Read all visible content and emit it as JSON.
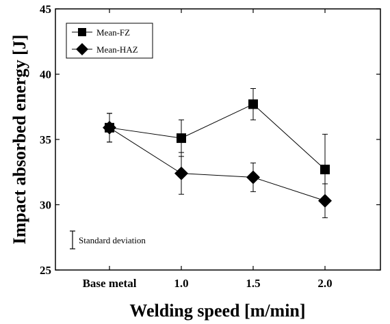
{
  "chart_data": {
    "type": "line",
    "xlabel": "Welding speed [m/min]",
    "ylabel": "Impact absorbed energy [J]",
    "categories": [
      "Base metal",
      "1.0",
      "1.5",
      "2.0"
    ],
    "ylim": [
      25,
      45
    ],
    "yticks": [
      "25",
      "30",
      "35",
      "40",
      "45"
    ],
    "series": [
      {
        "name": "Mean-FZ",
        "marker": "square",
        "values": [
          35.9,
          35.1,
          37.7,
          32.7
        ],
        "errors": [
          1.1,
          1.4,
          1.2,
          2.7
        ]
      },
      {
        "name": "Mean-HAZ",
        "marker": "diamond",
        "values": [
          35.9,
          32.4,
          32.1,
          30.3
        ],
        "errors": [
          1.1,
          1.6,
          1.1,
          1.3
        ]
      }
    ],
    "legend": {
      "position": "top-left"
    },
    "annotation": "Standard deviation",
    "grid": false
  }
}
